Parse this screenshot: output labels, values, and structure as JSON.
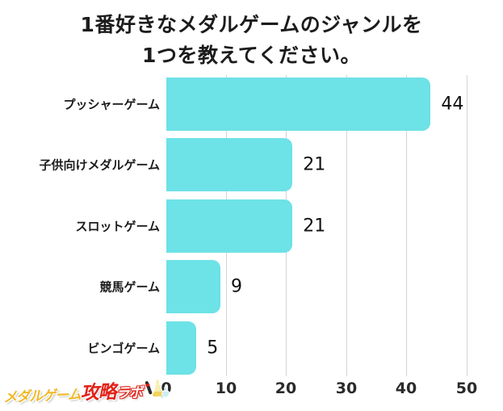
{
  "title": {
    "line1": "1番好きなメダルゲームのジャンルを",
    "line2": "1つを教えてください。"
  },
  "chart_data": {
    "type": "bar",
    "orientation": "horizontal",
    "title": "1番好きなメダルゲームのジャンルを1つを教えてください。",
    "categories": [
      "プッシャーゲーム",
      "子供向けメダルゲーム",
      "スロットゲーム",
      "競馬ゲーム",
      "ビンゴゲーム"
    ],
    "values": [
      44,
      21,
      21,
      9,
      5
    ],
    "xlabel": "",
    "ylabel": "",
    "xlim": [
      0,
      50
    ],
    "x_ticks": [
      "0",
      "10",
      "20",
      "30",
      "40",
      "50"
    ],
    "grid": "vertical-lines-only",
    "legend": "none",
    "bar_color": "#6de2e7",
    "gridline_color": "#d4d4d4",
    "text_color": "#1c1c1c"
  },
  "logo": {
    "part1": "メダルゲーム",
    "part2": "攻略",
    "part3": "ラボ",
    "part1_color": "#f0b929",
    "part2_color": "#e32118",
    "part3_color": "#ffffff",
    "icon": "lab-flasks-icon"
  }
}
